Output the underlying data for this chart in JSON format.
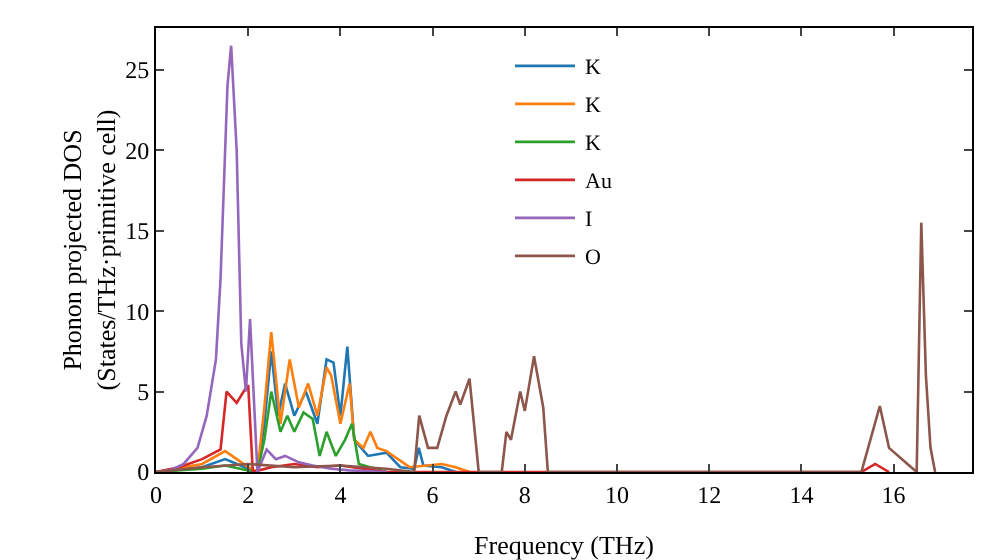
{
  "chart_data": {
    "type": "line",
    "xlabel": "Frequency (THz)",
    "ylabel": "Phonon projected DOS\n(States/THz·primitive cell)",
    "xlim": [
      0,
      17.7
    ],
    "ylim": [
      0,
      27.6
    ],
    "xticks": [
      0,
      2,
      4,
      6,
      8,
      10,
      12,
      14,
      16
    ],
    "yticks": [
      0,
      5,
      10,
      15,
      20,
      25
    ],
    "grid": false,
    "legend": "top",
    "marker": "none",
    "line_style": "solid",
    "series": [
      {
        "name": "K",
        "color": "#1f77b4",
        "x": [
          0,
          1,
          1.5,
          2,
          2.2,
          2.35,
          2.5,
          2.65,
          2.8,
          3,
          3.25,
          3.5,
          3.7,
          3.85,
          4,
          4.15,
          4.3,
          4.6,
          5,
          5.3,
          5.6,
          5.7,
          5.8,
          6.2,
          6.5
        ],
        "values": [
          0,
          0.3,
          0.8,
          0.2,
          0,
          3,
          7.5,
          3.5,
          5.5,
          3.5,
          5,
          3,
          7,
          6.8,
          3.5,
          7.8,
          2,
          1,
          1.2,
          0.3,
          0.2,
          1.5,
          0.4,
          0.3,
          0
        ]
      },
      {
        "name": "K",
        "color": "#ff7f0e",
        "x": [
          0,
          1,
          1.5,
          2,
          2.2,
          2.35,
          2.5,
          2.7,
          2.9,
          3.1,
          3.3,
          3.5,
          3.7,
          3.8,
          4,
          4.2,
          4.3,
          4.5,
          4.65,
          4.8,
          5,
          5.5,
          6.2,
          6.5,
          6.8
        ],
        "values": [
          0,
          0.5,
          1.3,
          0.3,
          0,
          4,
          8.7,
          3,
          7,
          4,
          5.5,
          3.5,
          6.5,
          6,
          3,
          5.5,
          2,
          1.5,
          2.5,
          1.5,
          1.3,
          0.3,
          0.5,
          0.3,
          0
        ]
      },
      {
        "name": "K",
        "color": "#2ca02c",
        "x": [
          0,
          1,
          1.5,
          2,
          2.2,
          2.35,
          2.5,
          2.7,
          2.85,
          3,
          3.2,
          3.4,
          3.55,
          3.7,
          3.9,
          4.1,
          4.25,
          4.4,
          5
        ],
        "values": [
          0,
          0.2,
          0.4,
          0.1,
          0,
          2,
          5,
          2.5,
          3.5,
          2.5,
          3.7,
          3.3,
          1,
          2.5,
          1,
          2,
          3,
          0.5,
          0
        ]
      },
      {
        "name": "Au",
        "color": "#d62728",
        "x": [
          0,
          0.5,
          1,
          1.4,
          1.53,
          1.75,
          1.9,
          2,
          2.1,
          2.5,
          3,
          3.5,
          4,
          4.5,
          5,
          15.3,
          15.6,
          15.9
        ],
        "values": [
          0,
          0.3,
          0.8,
          1.4,
          5,
          4.3,
          5,
          5.4,
          0,
          0.3,
          0.5,
          0.3,
          0.4,
          0.2,
          0,
          0,
          0.5,
          0
        ]
      },
      {
        "name": "I",
        "color": "#9467bd",
        "x": [
          0,
          0.3,
          0.6,
          0.9,
          1.1,
          1.3,
          1.4,
          1.55,
          1.63,
          1.75,
          1.85,
          1.95,
          2.04,
          2.2,
          2.4,
          2.6,
          2.8,
          3.1,
          3.4,
          3.8,
          4.2,
          5
        ],
        "values": [
          0,
          0.1,
          0.5,
          1.5,
          3.5,
          7,
          12,
          24,
          26.5,
          20,
          8,
          5,
          9.5,
          0,
          1.4,
          0.8,
          1,
          0.6,
          0.4,
          0.2,
          0.1,
          0
        ]
      },
      {
        "name": "O",
        "color": "#8c564b",
        "x": [
          0,
          1,
          2,
          3,
          4,
          5,
          5.6,
          5.71,
          5.9,
          6.1,
          6.3,
          6.5,
          6.6,
          6.8,
          7,
          7.5,
          7.6,
          7.7,
          7.9,
          8,
          8.2,
          8.4,
          8.5,
          15.3,
          15.7,
          15.9,
          16.3,
          16.5,
          16.6,
          16.7,
          16.8,
          16.9
        ],
        "values": [
          0,
          0.3,
          0.5,
          0.3,
          0.4,
          0.2,
          0,
          3.5,
          1.5,
          1.5,
          3.5,
          5,
          4.2,
          5.8,
          0,
          0,
          2.5,
          2,
          5,
          3.8,
          7.2,
          4,
          0,
          0,
          4.1,
          1.5,
          0.5,
          0,
          15.5,
          6,
          1.5,
          0
        ]
      }
    ]
  }
}
